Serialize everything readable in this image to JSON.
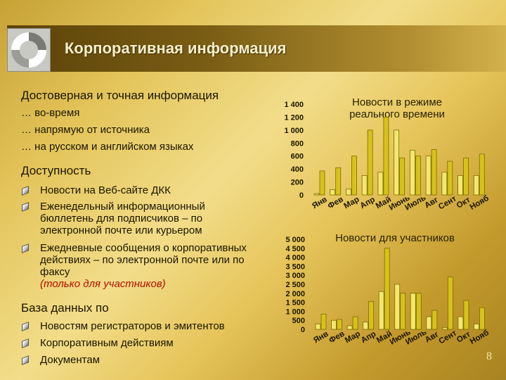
{
  "header": {
    "title": "Корпоративная информация"
  },
  "left": {
    "heading1": "Достоверная и точная информация",
    "sub_items": [
      "… во-время",
      "… напрямую от источника",
      "… на русском и английском языках"
    ],
    "heading2": "Доступность",
    "access_items": [
      "Новости на Веб-сайте ДКК",
      "Еженедельный информационный бюллетень для подписчиков – по электронной почте или курьером",
      "Ежедневные сообщения о корпоративных действиях – по электронной почте или по факсу"
    ],
    "access_note": "(только для участников)",
    "heading3": "База данных по",
    "db_items": [
      "Новостям регистраторов и эмитентов",
      "Корпоративным действиям",
      "Документам"
    ]
  },
  "page_number": "8",
  "colors": {
    "bar_light": "#f2e870",
    "bar_dark": "#d7c21a",
    "bar_outline": "#7a6a00",
    "header_dark": "#5b4209",
    "text_red": "#b70d00"
  },
  "chart_data": [
    {
      "type": "bar",
      "title": "Новости в режиме реального времени",
      "categories": [
        "Янв",
        "Фев",
        "Мар",
        "Апр",
        "Май",
        "Июнь",
        "Июль",
        "Авг",
        "Сент",
        "Окт",
        "Нояб"
      ],
      "series": [
        {
          "values": [
            20,
            80,
            90,
            300,
            350,
            1000,
            690,
            600,
            350,
            300,
            300
          ]
        },
        {
          "values": [
            370,
            420,
            600,
            1000,
            1200,
            570,
            600,
            700,
            520,
            570,
            630
          ]
        }
      ],
      "ylim": [
        0,
        1400
      ],
      "yticks": [
        0,
        200,
        400,
        600,
        800,
        1000,
        1200,
        1400
      ],
      "ytick_labels": [
        "0",
        "200",
        "400",
        "600",
        "800",
        "1 000",
        "1 200",
        "1 400"
      ]
    },
    {
      "type": "bar",
      "title": "Новости для участников",
      "categories": [
        "Янв",
        "Фев",
        "Мар",
        "Апр",
        "Май",
        "Июнь",
        "Июль",
        "Авг",
        "Сент",
        "Окт",
        "Нояб"
      ],
      "series": [
        {
          "values": [
            300,
            500,
            200,
            400,
            2100,
            2500,
            2000,
            700,
            100,
            700,
            300
          ]
        },
        {
          "values": [
            850,
            550,
            700,
            1550,
            4500,
            2000,
            2000,
            1050,
            2900,
            1600,
            1200
          ]
        }
      ],
      "ylim": [
        0,
        5000
      ],
      "yticks": [
        0,
        500,
        1000,
        1500,
        2000,
        2500,
        3000,
        3500,
        4000,
        4500,
        5000
      ],
      "ytick_labels": [
        "0",
        "500",
        "1 000",
        "1 500",
        "2 000",
        "2 500",
        "3 000",
        "3 500",
        "4 000",
        "4 500",
        "5 000"
      ]
    }
  ]
}
